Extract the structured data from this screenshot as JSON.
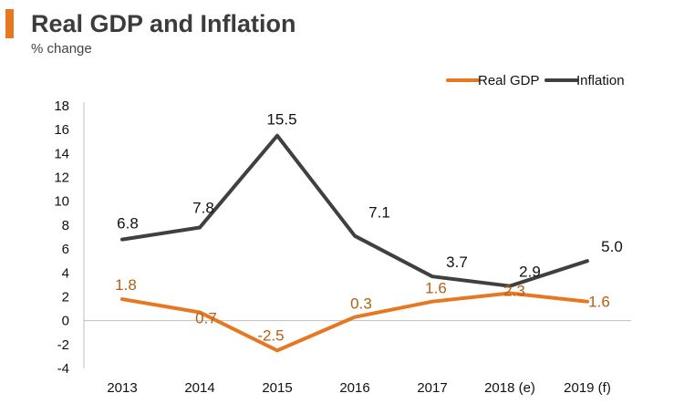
{
  "header": {
    "title": "Real GDP and Inflation",
    "subtitle": "% change",
    "accent_color": "#e87722"
  },
  "chart_data": {
    "type": "line",
    "title": "Real GDP and Inflation",
    "subtitle": "% change",
    "categories": [
      "2013",
      "2014",
      "2015",
      "2016",
      "2017",
      "2018 (e)",
      "2019 (f)"
    ],
    "ylim": [
      -4,
      18
    ],
    "yticks": [
      -4,
      -2,
      0,
      2,
      4,
      6,
      8,
      10,
      12,
      14,
      16,
      18
    ],
    "grid": false,
    "legend_position": "top-right",
    "series": [
      {
        "name": "Real GDP",
        "color": "#e87722",
        "values": [
          1.8,
          0.7,
          -2.5,
          0.3,
          1.6,
          2.3,
          1.6
        ],
        "labels": [
          "1.8",
          "0.7",
          "-2.5",
          "0.3",
          "1.6",
          "2.3",
          "1.6"
        ]
      },
      {
        "name": "Inflation",
        "color": "#404040",
        "values": [
          6.8,
          7.8,
          15.5,
          7.1,
          3.7,
          2.9,
          5.0
        ],
        "labels": [
          "6.8",
          "7.8",
          "15.5",
          "7.1",
          "3.7",
          "2.9",
          "5.0"
        ]
      }
    ]
  }
}
